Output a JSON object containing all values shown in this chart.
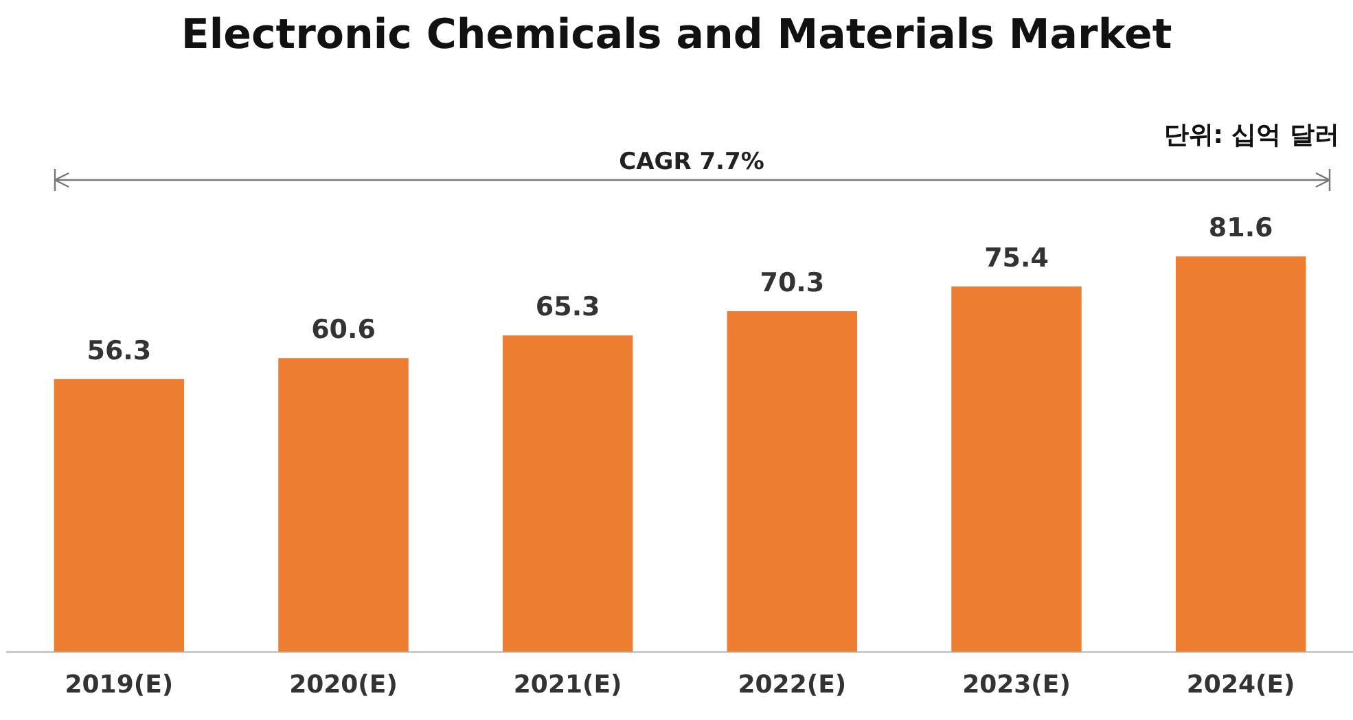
{
  "chart_data": {
    "type": "bar",
    "title": "Electronic Chemicals and Materials Market",
    "categories": [
      "2019(E)",
      "2020(E)",
      "2021(E)",
      "2022(E)",
      "2023(E)",
      "2024(E)"
    ],
    "values": [
      56.3,
      60.6,
      65.3,
      70.3,
      75.4,
      81.6
    ],
    "color": "#ed7d31",
    "tick_labels": "x",
    "grid": false,
    "data_labels": true,
    "legend": false,
    "annotations": [
      "CAGR 7.7%",
      "단위: 십억 달러"
    ]
  }
}
